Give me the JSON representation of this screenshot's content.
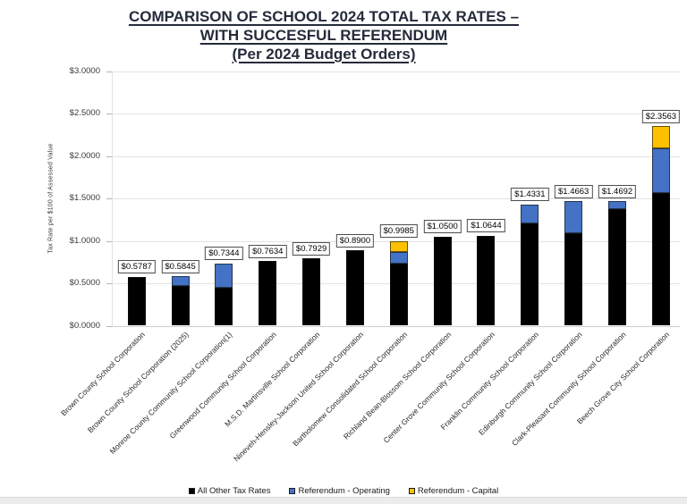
{
  "title": {
    "line1": "COMPARISON OF SCHOOL 2024 TOTAL TAX RATES –",
    "line2": "WITH SUCCESFUL REFERENDUM",
    "line3": "(Per 2024 Budget Orders)"
  },
  "chart_data": {
    "type": "bar",
    "stacked": true,
    "title": "COMPARISON OF SCHOOL 2024 TOTAL TAX RATES – WITH SUCCESFUL REFERENDUM (Per 2024 Budget Orders)",
    "ylabel": "Tax Rate per $100 of Assessed Value",
    "xlabel": "",
    "ylim": [
      0.0,
      3.0
    ],
    "grid": "horizontal",
    "legend_position": "bottom",
    "yticks": [
      {
        "label": "$0.0000",
        "value": 0.0
      },
      {
        "label": "$0.5000",
        "value": 0.5
      },
      {
        "label": "$1.0000",
        "value": 1.0
      },
      {
        "label": "$1.5000",
        "value": 1.5
      },
      {
        "label": "$2.0000",
        "value": 2.0
      },
      {
        "label": "$2.5000",
        "value": 2.5
      },
      {
        "label": "$3.0000",
        "value": 3.0
      }
    ],
    "series": [
      {
        "name": "All Other Tax Rates",
        "color": "#000000"
      },
      {
        "name": "Referendum - Operating",
        "color": "#4472C4"
      },
      {
        "name": "Referendum - Capital",
        "color": "#FFC000"
      }
    ],
    "categories": [
      "Brown County School Corporation",
      "Brown County School Corporation (2025)",
      "Monroe County Community School Corporation(1)",
      "Greenwood Community School Corporation",
      "M.S.D. Martinsville School Corporation",
      "Nineveh-Hensley-Jackson United School Corporation",
      "Bartholomew Consolidated School Corporation",
      "Richland Bean-Blossom School Corporation",
      "Center Grove Community School Corporation",
      "Franklin Community School Corporation",
      "Edinburgh Community School Corporation",
      "Clark-Pleasant Community School Corporation",
      "Beech Grove City School Corporation"
    ],
    "bars": [
      {
        "category": "Brown County School Corporation",
        "total": 0.5787,
        "total_label": "$0.5787",
        "values": [
          0.5787,
          0.0,
          0.0
        ]
      },
      {
        "category": "Brown County School Corporation (2025)",
        "total": 0.5845,
        "total_label": "$0.5845",
        "values": [
          0.4701,
          0.1144,
          0.0
        ]
      },
      {
        "category": "Monroe County Community School Corporation(1)",
        "total": 0.7344,
        "total_label": "$0.7344",
        "values": [
          0.4499,
          0.2845,
          0.0
        ]
      },
      {
        "category": "Greenwood Community School Corporation",
        "total": 0.7634,
        "total_label": "$0.7634",
        "values": [
          0.7634,
          0.0,
          0.0
        ]
      },
      {
        "category": "M.S.D. Martinsville School Corporation",
        "total": 0.7929,
        "total_label": "$0.7929",
        "values": [
          0.7929,
          0.0,
          0.0
        ]
      },
      {
        "category": "Nineveh-Hensley-Jackson United School Corporation",
        "total": 0.89,
        "total_label": "$0.8900",
        "values": [
          0.89,
          0.0,
          0.0
        ]
      },
      {
        "category": "Bartholomew Consolidated School Corporation",
        "total": 0.9985,
        "total_label": "$0.9985",
        "values": [
          0.7285,
          0.14,
          0.13
        ]
      },
      {
        "category": "Richland Bean-Blossom School Corporation",
        "total": 1.05,
        "total_label": "$1.0500",
        "values": [
          1.05,
          0.0,
          0.0
        ]
      },
      {
        "category": "Center Grove Community School Corporation",
        "total": 1.0644,
        "total_label": "$1.0644",
        "values": [
          1.0644,
          0.0,
          0.0
        ]
      },
      {
        "category": "Franklin Community School Corporation",
        "total": 1.4331,
        "total_label": "$1.4331",
        "values": [
          1.2031,
          0.23,
          0.0
        ]
      },
      {
        "category": "Edinburgh Community School Corporation",
        "total": 1.4663,
        "total_label": "$1.4663",
        "values": [
          1.0863,
          0.38,
          0.0
        ]
      },
      {
        "category": "Clark-Pleasant Community School Corporation",
        "total": 1.4692,
        "total_label": "$1.4692",
        "values": [
          1.3792,
          0.09,
          0.0
        ]
      },
      {
        "category": "Beech Grove City School Corporation",
        "total": 2.3563,
        "total_label": "$2.3563",
        "values": [
          1.565,
          0.5236,
          0.2677
        ]
      }
    ],
    "colors": {
      "gridline": "#e2e2e2",
      "bar_border": "#141414",
      "label_box_border": "#4d4d4d",
      "title_text": "#252b3a"
    }
  }
}
